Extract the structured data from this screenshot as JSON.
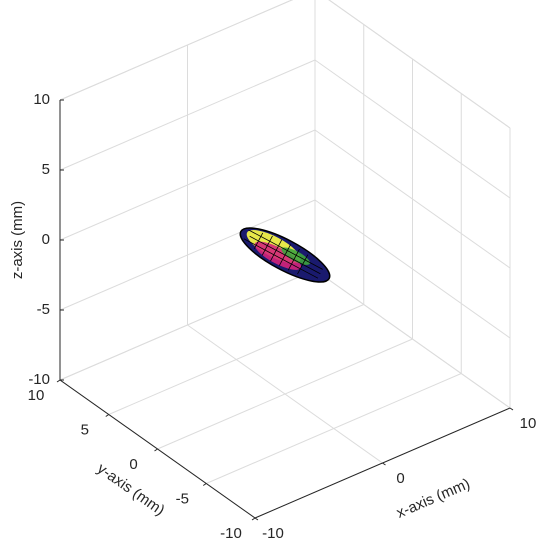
{
  "chart_data": {
    "type": "surface3d",
    "xlabel": "x-axis (mm)",
    "ylabel": "y-axis (mm)",
    "zlabel": "z-axis (mm)",
    "xlim": [
      -10,
      10
    ],
    "ylim": [
      -10,
      10
    ],
    "zlim": [
      -10,
      10
    ],
    "xticks": [
      -10,
      0,
      10
    ],
    "yticks": [
      -10,
      -5,
      0,
      5,
      10
    ],
    "zticks": [
      -10,
      -5,
      0,
      5,
      10
    ],
    "grid": true
  }
}
